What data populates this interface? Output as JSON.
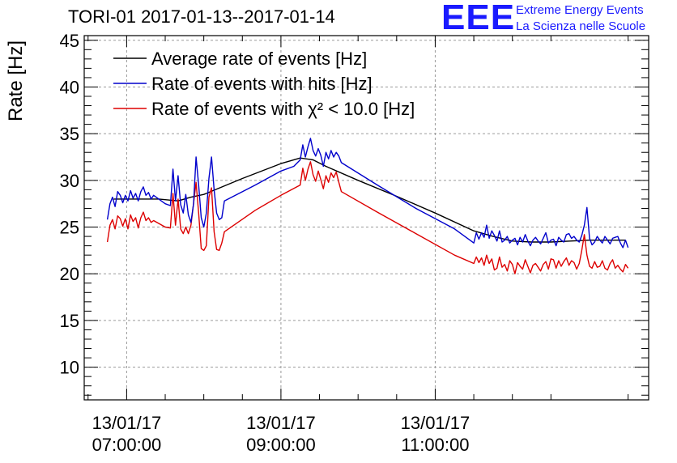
{
  "header": {
    "title": "TORI-01 2017-01-13--2017-01-14",
    "logo_mark": "EEE",
    "logo_line1": "Extreme Energy Events",
    "logo_line2": "La Scienza nelle Scuole"
  },
  "colors": {
    "average": "#000000",
    "hits": "#0000cc",
    "chi2": "#dd0000",
    "grid": "#9a9a9a"
  },
  "chart_data": {
    "type": "line",
    "title": "TORI-01 2017-01-13--2017-01-14",
    "ylabel": "Rate [Hz]",
    "xlabel": "",
    "ylim": [
      6.5,
      45.5
    ],
    "yticks": [
      10,
      15,
      20,
      25,
      30,
      35,
      40,
      45
    ],
    "xlim": [
      "2017-01-13 06:27",
      "2017-01-13 13:46"
    ],
    "xticks": [
      {
        "date": "13/01/17",
        "time": "07:00:00",
        "at": "2017-01-13 07:00"
      },
      {
        "date": "13/01/17",
        "time": "09:00:00",
        "at": "2017-01-13 09:00"
      },
      {
        "date": "13/01/17",
        "time": "11:00:00",
        "at": "2017-01-13 11:00"
      }
    ],
    "grid": true,
    "legend_position": "top-left",
    "series": [
      {
        "name": "Average rate of events [Hz]",
        "color": "#000000",
        "points": [
          [
            "06:50",
            28.0
          ],
          [
            "07:05",
            28.0
          ],
          [
            "07:15",
            28.0
          ],
          [
            "07:25",
            28.0
          ],
          [
            "07:40",
            27.8
          ],
          [
            "07:50",
            28.2
          ],
          [
            "08:00",
            28.5
          ],
          [
            "08:30",
            30.2
          ],
          [
            "09:00",
            31.8
          ],
          [
            "09:15",
            32.4
          ],
          [
            "09:25",
            32.2
          ],
          [
            "09:35",
            31.5
          ],
          [
            "10:00",
            30.0
          ],
          [
            "10:30",
            28.3
          ],
          [
            "11:00",
            26.5
          ],
          [
            "11:30",
            24.6
          ],
          [
            "11:45",
            24.0
          ],
          [
            "12:00",
            23.5
          ],
          [
            "12:15",
            23.4
          ],
          [
            "12:30",
            23.4
          ],
          [
            "12:45",
            23.5
          ],
          [
            "13:00",
            23.6
          ],
          [
            "13:15",
            23.6
          ],
          [
            "13:28",
            23.6
          ]
        ]
      },
      {
        "name": "Rate of events with hits [Hz]",
        "color": "#0000cc",
        "points": [
          [
            "06:45",
            25.8
          ],
          [
            "06:47",
            27.5
          ],
          [
            "06:49",
            28.2
          ],
          [
            "06:51",
            27.2
          ],
          [
            "06:53",
            28.8
          ],
          [
            "06:55",
            28.4
          ],
          [
            "06:57",
            27.6
          ],
          [
            "06:59",
            28.4
          ],
          [
            "07:01",
            27.8
          ],
          [
            "07:03",
            28.9
          ],
          [
            "07:05",
            28.1
          ],
          [
            "07:07",
            28.6
          ],
          [
            "07:09",
            27.8
          ],
          [
            "07:11",
            28.8
          ],
          [
            "07:13",
            29.3
          ],
          [
            "07:15",
            28.4
          ],
          [
            "07:17",
            28.7
          ],
          [
            "07:19",
            28.0
          ],
          [
            "07:21",
            28.4
          ],
          [
            "07:30",
            27.5
          ],
          [
            "07:34",
            27.3
          ],
          [
            "07:36",
            31.2
          ],
          [
            "07:38",
            27.8
          ],
          [
            "07:40",
            30.5
          ],
          [
            "07:42",
            27.4
          ],
          [
            "07:44",
            26.5
          ],
          [
            "07:46",
            28.5
          ],
          [
            "07:48",
            26.3
          ],
          [
            "07:50",
            25.5
          ],
          [
            "07:52",
            27.5
          ],
          [
            "07:54",
            32.5
          ],
          [
            "07:56",
            29.5
          ],
          [
            "07:58",
            26.0
          ],
          [
            "08:00",
            25.0
          ],
          [
            "08:02",
            26.5
          ],
          [
            "08:04",
            30.2
          ],
          [
            "08:06",
            32.5
          ],
          [
            "08:08",
            29.0
          ],
          [
            "08:10",
            26.5
          ],
          [
            "08:12",
            25.8
          ],
          [
            "08:14",
            26.0
          ],
          [
            "08:16",
            27.8
          ],
          [
            "08:40",
            29.5
          ],
          [
            "09:00",
            31.0
          ],
          [
            "09:10",
            31.5
          ],
          [
            "09:15",
            32.2
          ],
          [
            "09:17",
            33.8
          ],
          [
            "09:19",
            32.5
          ],
          [
            "09:21",
            33.6
          ],
          [
            "09:23",
            34.5
          ],
          [
            "09:25",
            33.2
          ],
          [
            "09:27",
            32.6
          ],
          [
            "09:29",
            33.4
          ],
          [
            "09:31",
            32.7
          ],
          [
            "09:33",
            31.5
          ],
          [
            "09:35",
            33.0
          ],
          [
            "09:37",
            32.3
          ],
          [
            "09:39",
            33.2
          ],
          [
            "09:41",
            32.5
          ],
          [
            "09:43",
            33.0
          ],
          [
            "09:45",
            32.6
          ],
          [
            "09:47",
            31.9
          ],
          [
            "10:15",
            29.5
          ],
          [
            "10:45",
            27.0
          ],
          [
            "11:15",
            24.8
          ],
          [
            "11:30",
            23.3
          ],
          [
            "11:32",
            24.4
          ],
          [
            "11:34",
            23.7
          ],
          [
            "11:36",
            24.4
          ],
          [
            "11:38",
            23.9
          ],
          [
            "11:40",
            25.2
          ],
          [
            "11:42",
            23.8
          ],
          [
            "11:44",
            24.6
          ],
          [
            "11:46",
            24.1
          ],
          [
            "11:48",
            23.5
          ],
          [
            "11:50",
            24.6
          ],
          [
            "11:52",
            23.4
          ],
          [
            "11:54",
            23.6
          ],
          [
            "11:56",
            24.0
          ],
          [
            "11:58",
            23.3
          ],
          [
            "12:00",
            23.6
          ],
          [
            "12:02",
            23.8
          ],
          [
            "12:04",
            23.1
          ],
          [
            "12:06",
            23.9
          ],
          [
            "12:08",
            23.4
          ],
          [
            "12:10",
            24.2
          ],
          [
            "12:12",
            23.5
          ],
          [
            "12:14",
            23.0
          ],
          [
            "12:16",
            23.6
          ],
          [
            "12:18",
            23.9
          ],
          [
            "12:20",
            23.5
          ],
          [
            "12:22",
            23.2
          ],
          [
            "12:24",
            23.8
          ],
          [
            "12:26",
            24.4
          ],
          [
            "12:28",
            23.3
          ],
          [
            "12:30",
            23.6
          ],
          [
            "12:32",
            23.7
          ],
          [
            "12:34",
            23.0
          ],
          [
            "12:36",
            23.9
          ],
          [
            "12:38",
            23.6
          ],
          [
            "12:40",
            23.4
          ],
          [
            "12:42",
            24.2
          ],
          [
            "12:44",
            24.3
          ],
          [
            "12:46",
            23.8
          ],
          [
            "12:48",
            24.0
          ],
          [
            "12:50",
            23.6
          ],
          [
            "12:52",
            23.4
          ],
          [
            "12:54",
            24.1
          ],
          [
            "12:56",
            25.2
          ],
          [
            "12:58",
            27.1
          ],
          [
            "13:00",
            23.8
          ],
          [
            "13:02",
            23.1
          ],
          [
            "13:04",
            23.4
          ],
          [
            "13:06",
            24.0
          ],
          [
            "13:08",
            23.6
          ],
          [
            "13:10",
            23.3
          ],
          [
            "13:12",
            24.0
          ],
          [
            "13:14",
            23.6
          ],
          [
            "13:16",
            23.2
          ],
          [
            "13:18",
            23.8
          ],
          [
            "13:20",
            23.9
          ],
          [
            "13:22",
            24.0
          ],
          [
            "13:24",
            23.3
          ],
          [
            "13:26",
            22.8
          ],
          [
            "13:28",
            23.6
          ],
          [
            "13:30",
            22.8
          ]
        ]
      },
      {
        "name": "Rate of events with χ² < 10.0 [Hz]",
        "color": "#dd0000",
        "points": [
          [
            "06:45",
            23.4
          ],
          [
            "06:47",
            25.2
          ],
          [
            "06:49",
            25.8
          ],
          [
            "06:51",
            24.8
          ],
          [
            "06:53",
            26.2
          ],
          [
            "06:55",
            25.9
          ],
          [
            "06:57",
            25.1
          ],
          [
            "06:59",
            25.9
          ],
          [
            "07:01",
            24.8
          ],
          [
            "07:03",
            26.3
          ],
          [
            "07:05",
            25.6
          ],
          [
            "07:07",
            26.0
          ],
          [
            "07:09",
            24.9
          ],
          [
            "07:11",
            26.0
          ],
          [
            "07:13",
            26.6
          ],
          [
            "07:15",
            25.7
          ],
          [
            "07:17",
            26.0
          ],
          [
            "07:19",
            25.5
          ],
          [
            "07:21",
            25.7
          ],
          [
            "07:30",
            25.0
          ],
          [
            "07:34",
            24.9
          ],
          [
            "07:36",
            28.6
          ],
          [
            "07:38",
            25.2
          ],
          [
            "07:40",
            28.0
          ],
          [
            "07:42",
            24.8
          ],
          [
            "07:44",
            24.3
          ],
          [
            "07:46",
            25.0
          ],
          [
            "07:48",
            24.3
          ],
          [
            "07:50",
            25.2
          ],
          [
            "07:52",
            27.5
          ],
          [
            "07:54",
            29.8
          ],
          [
            "07:56",
            26.5
          ],
          [
            "07:58",
            22.7
          ],
          [
            "08:00",
            22.5
          ],
          [
            "08:02",
            23.0
          ],
          [
            "08:04",
            28.2
          ],
          [
            "08:06",
            29.2
          ],
          [
            "08:08",
            24.5
          ],
          [
            "08:10",
            22.6
          ],
          [
            "08:12",
            22.5
          ],
          [
            "08:14",
            23.3
          ],
          [
            "08:16",
            24.5
          ],
          [
            "08:40",
            26.8
          ],
          [
            "09:00",
            28.4
          ],
          [
            "09:15",
            29.5
          ],
          [
            "09:17",
            31.3
          ],
          [
            "09:19",
            30.0
          ],
          [
            "09:21",
            31.2
          ],
          [
            "09:23",
            32.0
          ],
          [
            "09:25",
            30.6
          ],
          [
            "09:27",
            29.9
          ],
          [
            "09:29",
            31.0
          ],
          [
            "09:31",
            30.1
          ],
          [
            "09:33",
            29.1
          ],
          [
            "09:35",
            30.5
          ],
          [
            "09:37",
            29.8
          ],
          [
            "09:39",
            30.8
          ],
          [
            "09:41",
            30.3
          ],
          [
            "09:43",
            30.9
          ],
          [
            "09:45",
            29.8
          ],
          [
            "09:47",
            28.8
          ],
          [
            "10:15",
            26.6
          ],
          [
            "10:45",
            24.3
          ],
          [
            "11:15",
            22.0
          ],
          [
            "11:30",
            21.1
          ],
          [
            "11:32",
            21.8
          ],
          [
            "11:34",
            21.2
          ],
          [
            "11:36",
            21.7
          ],
          [
            "11:38",
            20.9
          ],
          [
            "11:40",
            22.0
          ],
          [
            "11:42",
            21.1
          ],
          [
            "11:44",
            21.6
          ],
          [
            "11:46",
            20.4
          ],
          [
            "11:48",
            20.6
          ],
          [
            "11:50",
            21.8
          ],
          [
            "11:52",
            20.7
          ],
          [
            "11:54",
            21.0
          ],
          [
            "11:56",
            20.3
          ],
          [
            "11:58",
            21.4
          ],
          [
            "12:00",
            21.0
          ],
          [
            "12:02",
            20.0
          ],
          [
            "12:04",
            21.2
          ],
          [
            "12:06",
            20.8
          ],
          [
            "12:08",
            20.5
          ],
          [
            "12:10",
            21.5
          ],
          [
            "12:12",
            20.8
          ],
          [
            "12:14",
            20.1
          ],
          [
            "12:16",
            20.9
          ],
          [
            "12:18",
            21.1
          ],
          [
            "12:20",
            20.7
          ],
          [
            "12:22",
            20.3
          ],
          [
            "12:24",
            21.0
          ],
          [
            "12:26",
            21.3
          ],
          [
            "12:28",
            20.5
          ],
          [
            "12:30",
            21.6
          ],
          [
            "12:32",
            21.5
          ],
          [
            "12:34",
            20.6
          ],
          [
            "12:36",
            21.4
          ],
          [
            "12:38",
            20.8
          ],
          [
            "12:40",
            21.3
          ],
          [
            "12:42",
            21.7
          ],
          [
            "12:44",
            20.9
          ],
          [
            "12:46",
            21.4
          ],
          [
            "12:48",
            21.2
          ],
          [
            "12:50",
            20.5
          ],
          [
            "12:52",
            21.1
          ],
          [
            "12:54",
            22.5
          ],
          [
            "12:56",
            24.2
          ],
          [
            "12:58",
            22.0
          ],
          [
            "13:00",
            20.8
          ],
          [
            "13:02",
            20.6
          ],
          [
            "13:04",
            21.3
          ],
          [
            "13:06",
            20.7
          ],
          [
            "13:08",
            20.8
          ],
          [
            "13:10",
            21.4
          ],
          [
            "13:12",
            20.6
          ],
          [
            "13:14",
            20.4
          ],
          [
            "13:16",
            21.1
          ],
          [
            "13:18",
            21.5
          ],
          [
            "13:20",
            20.6
          ],
          [
            "13:22",
            20.9
          ],
          [
            "13:24",
            20.5
          ],
          [
            "13:26",
            20.2
          ],
          [
            "13:28",
            21.0
          ],
          [
            "13:30",
            20.6
          ]
        ]
      }
    ]
  }
}
